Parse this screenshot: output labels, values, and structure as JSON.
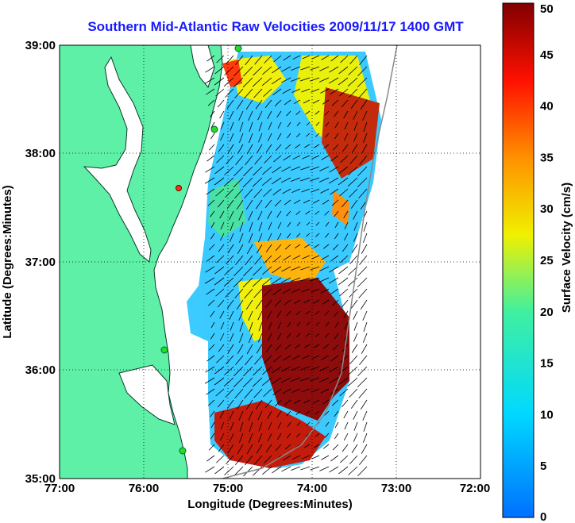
{
  "title": "Southern Mid-Atlantic Raw Velocities 2009/11/17 1400 GMT",
  "xlabel": "Longitude (Degrees:Minutes)",
  "ylabel": "Latitude (Degrees:Minutes)",
  "x_ticks": [
    "77:00",
    "76:00",
    "75:00",
    "74:00",
    "73:00",
    "72:00"
  ],
  "y_ticks": [
    "39:00",
    "38:00",
    "37:00",
    "36:00",
    "35:00"
  ],
  "colorbar": {
    "label": "Surface Velocity (cm/s)",
    "ticks": [
      "0",
      "5",
      "10",
      "15",
      "20",
      "25",
      "30",
      "35",
      "40",
      "45",
      "50"
    ],
    "range": [
      0,
      50
    ]
  },
  "colors": {
    "land": "#5ff0a8",
    "title": "#1a1aff",
    "station": "#22dd22"
  }
}
